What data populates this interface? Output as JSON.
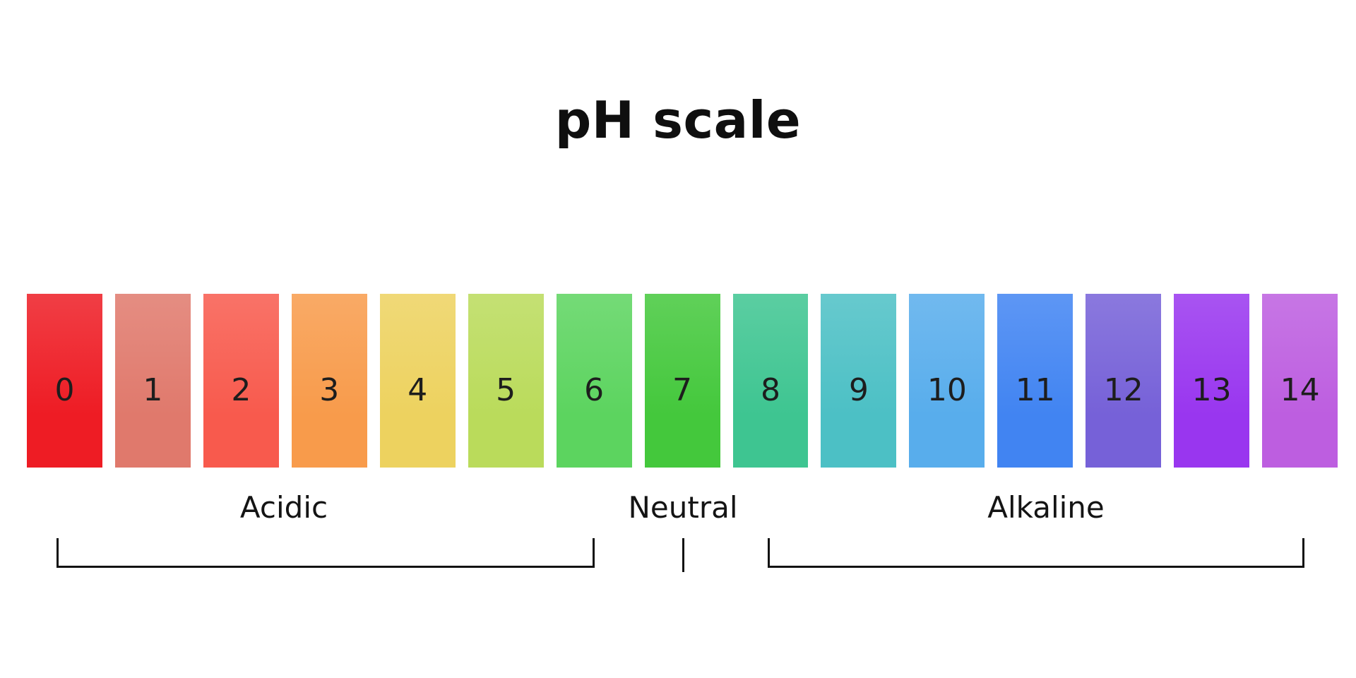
{
  "title": "pH scale",
  "scale": {
    "items": [
      {
        "value": "0",
        "color": "#ee1c24"
      },
      {
        "value": "1",
        "color": "#e0796c"
      },
      {
        "value": "2",
        "color": "#f85a4d"
      },
      {
        "value": "3",
        "color": "#f89b4b"
      },
      {
        "value": "4",
        "color": "#edd25f"
      },
      {
        "value": "5",
        "color": "#badb5b"
      },
      {
        "value": "6",
        "color": "#5cd45f"
      },
      {
        "value": "7",
        "color": "#44c83c"
      },
      {
        "value": "8",
        "color": "#3ec591"
      },
      {
        "value": "9",
        "color": "#4cc0c5"
      },
      {
        "value": "10",
        "color": "#58adec"
      },
      {
        "value": "11",
        "color": "#4184f2"
      },
      {
        "value": "12",
        "color": "#7661d8"
      },
      {
        "value": "13",
        "color": "#9936ef"
      },
      {
        "value": "14",
        "color": "#bd5ee0"
      }
    ]
  },
  "regions": {
    "acidic": "Acidic",
    "neutral": "Neutral",
    "alkaline": "Alkaline"
  },
  "colors": {
    "text": "#1d1d1d",
    "line": "#121212",
    "background": "#ffffff"
  }
}
